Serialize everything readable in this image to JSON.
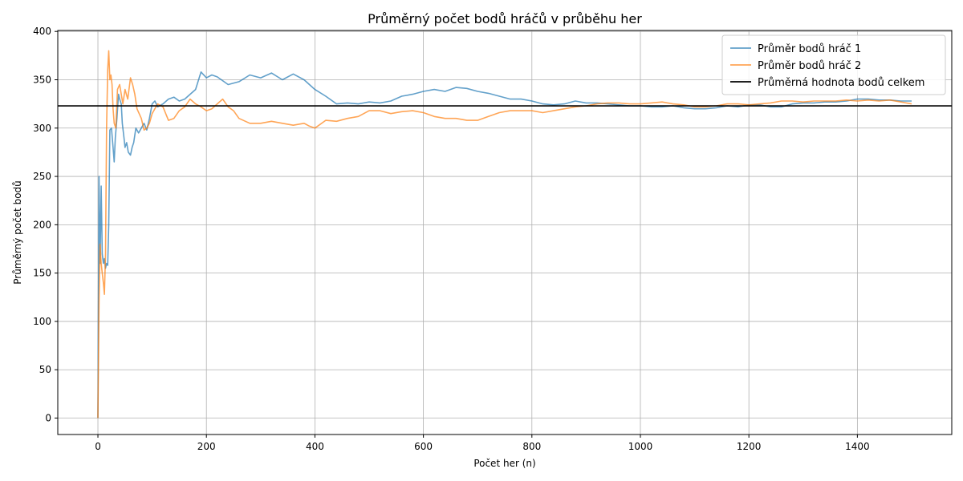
{
  "chart_data": {
    "type": "line",
    "title": "Průměrný počet bodů hráčů v průběhu her",
    "xlabel": "Počet her (n)",
    "ylabel": "Průměrný počet bodů",
    "xlim": [
      -74,
      1574
    ],
    "ylim": [
      -17,
      401
    ],
    "xticks": [
      0,
      200,
      400,
      600,
      800,
      1000,
      1200,
      1400
    ],
    "yticks": [
      0,
      50,
      100,
      150,
      200,
      250,
      300,
      350,
      400
    ],
    "grid": true,
    "legend_position": "top-right",
    "series": [
      {
        "name": "Průměr bodů hráč 1",
        "color": "#1f77b4",
        "opacity": 0.7,
        "x": [
          0,
          2,
          4,
          6,
          8,
          10,
          12,
          14,
          16,
          18,
          20,
          22,
          25,
          28,
          30,
          32,
          35,
          38,
          40,
          43,
          45,
          48,
          50,
          53,
          56,
          60,
          63,
          66,
          70,
          75,
          80,
          85,
          90,
          95,
          100,
          105,
          110,
          120,
          130,
          140,
          150,
          160,
          170,
          180,
          190,
          200,
          210,
          220,
          240,
          260,
          280,
          300,
          320,
          340,
          360,
          380,
          400,
          420,
          440,
          460,
          480,
          500,
          520,
          540,
          560,
          580,
          600,
          620,
          640,
          660,
          680,
          700,
          720,
          740,
          760,
          780,
          800,
          820,
          840,
          860,
          880,
          900,
          920,
          940,
          960,
          980,
          1000,
          1020,
          1040,
          1060,
          1080,
          1100,
          1120,
          1140,
          1160,
          1180,
          1200,
          1220,
          1240,
          1260,
          1280,
          1300,
          1320,
          1340,
          1360,
          1380,
          1400,
          1420,
          1440,
          1460,
          1480,
          1500
        ],
        "y": [
          0,
          250,
          160,
          240,
          170,
          160,
          165,
          155,
          160,
          158,
          200,
          298,
          300,
          280,
          265,
          290,
          310,
          335,
          330,
          325,
          305,
          290,
          280,
          285,
          275,
          272,
          280,
          285,
          300,
          295,
          300,
          305,
          298,
          310,
          325,
          328,
          322,
          325,
          330,
          332,
          328,
          330,
          335,
          340,
          358,
          352,
          355,
          353,
          345,
          348,
          355,
          352,
          357,
          350,
          356,
          350,
          340,
          333,
          325,
          326,
          325,
          327,
          326,
          328,
          333,
          335,
          338,
          340,
          338,
          342,
          341,
          338,
          336,
          333,
          330,
          330,
          328,
          325,
          324,
          325,
          328,
          326,
          326,
          325,
          324,
          323,
          323,
          322,
          322,
          323,
          321,
          320,
          320,
          321,
          323,
          322,
          324,
          324,
          322,
          322,
          325,
          326,
          326,
          327,
          327,
          328,
          330,
          330,
          329,
          329,
          328,
          328
        ]
      },
      {
        "name": "Průměr bodů hráč 2",
        "color": "#ff7f0e",
        "opacity": 0.7,
        "x": [
          0,
          2,
          4,
          6,
          8,
          10,
          12,
          14,
          16,
          18,
          20,
          22,
          24,
          26,
          28,
          30,
          33,
          36,
          40,
          43,
          46,
          50,
          55,
          60,
          64,
          68,
          72,
          76,
          80,
          85,
          90,
          95,
          100,
          110,
          120,
          130,
          140,
          150,
          160,
          170,
          180,
          190,
          200,
          210,
          220,
          230,
          240,
          250,
          260,
          280,
          300,
          320,
          340,
          360,
          380,
          390,
          400,
          420,
          440,
          460,
          480,
          500,
          520,
          540,
          560,
          580,
          600,
          620,
          640,
          660,
          680,
          700,
          720,
          740,
          760,
          780,
          800,
          820,
          840,
          860,
          880,
          900,
          920,
          940,
          960,
          980,
          1000,
          1020,
          1040,
          1060,
          1080,
          1100,
          1120,
          1140,
          1160,
          1180,
          1200,
          1220,
          1240,
          1260,
          1280,
          1300,
          1320,
          1340,
          1360,
          1380,
          1400,
          1420,
          1440,
          1460,
          1480,
          1500
        ],
        "y": [
          0,
          120,
          180,
          160,
          150,
          140,
          128,
          170,
          300,
          360,
          380,
          350,
          355,
          345,
          320,
          305,
          300,
          340,
          345,
          335,
          325,
          340,
          330,
          352,
          345,
          335,
          320,
          315,
          310,
          298,
          300,
          305,
          315,
          325,
          322,
          308,
          310,
          318,
          322,
          330,
          325,
          322,
          318,
          320,
          325,
          330,
          322,
          318,
          310,
          305,
          305,
          307,
          305,
          303,
          305,
          302,
          300,
          308,
          307,
          310,
          312,
          318,
          318,
          315,
          317,
          318,
          316,
          312,
          310,
          310,
          308,
          308,
          312,
          316,
          318,
          318,
          318,
          316,
          318,
          320,
          322,
          323,
          325,
          326,
          326,
          325,
          325,
          326,
          327,
          325,
          324,
          322,
          322,
          323,
          325,
          325,
          324,
          325,
          326,
          328,
          328,
          327,
          328,
          328,
          328,
          329,
          328,
          329,
          328,
          329,
          327,
          325
        ]
      },
      {
        "name": "Průměrná hodnota bodů celkem",
        "color": "#000000",
        "type": "hline",
        "value": 323
      }
    ]
  }
}
